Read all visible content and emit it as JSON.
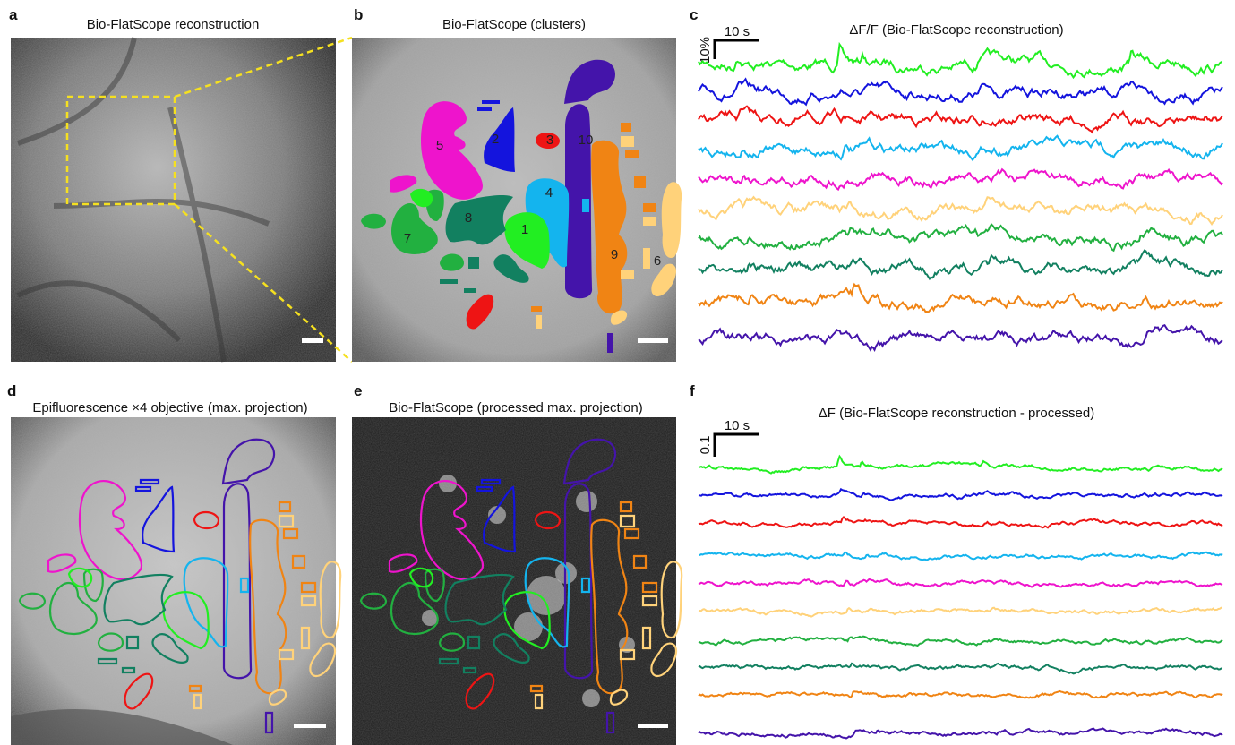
{
  "panels": [
    {
      "letter": "a",
      "title": "Bio-FlatScope reconstruction"
    },
    {
      "letter": "b",
      "title": "Bio-FlatScope (clusters)",
      "cluster_labels": [
        "5",
        "2",
        "3",
        "10",
        "4",
        "8",
        "7",
        "1",
        "9",
        "6"
      ]
    },
    {
      "letter": "c",
      "title": "ΔF/F (Bio-FlatScope reconstruction)",
      "time_scale": "10 s",
      "amplitude_scale": "10%",
      "trace_colors": [
        "#22ee22",
        "#1414dd",
        "#ee1414",
        "#14b4ee",
        "#ee14cc",
        "#ffd27a",
        "#22b040",
        "#128060",
        "#f08414",
        "#4414aa"
      ]
    },
    {
      "letter": "d",
      "title": "Epifluorescence ×4 objective (max. projection)"
    },
    {
      "letter": "e",
      "title": "Bio-FlatScope (processed max. projection)"
    },
    {
      "letter": "f",
      "title": "ΔF (Bio-FlatScope reconstruction - processed)",
      "time_scale": "10 s",
      "amplitude_scale": "0.1",
      "trace_colors": [
        "#22ee22",
        "#1414dd",
        "#ee1414",
        "#14b4ee",
        "#ee14cc",
        "#ffd27a",
        "#22b040",
        "#128060",
        "#f08414",
        "#4414aa"
      ]
    }
  ]
}
